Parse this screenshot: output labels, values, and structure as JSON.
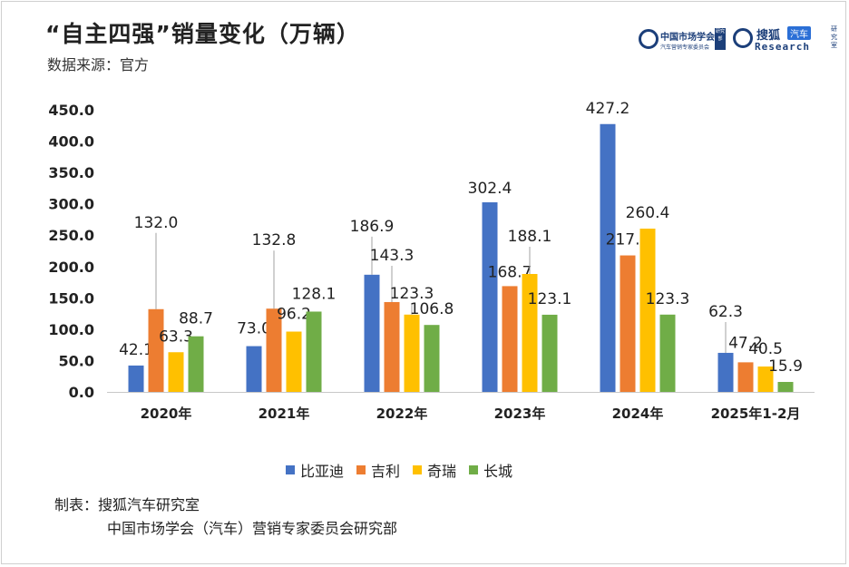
{
  "title": "“自主四强”销量变化（万辆）",
  "subtitle": "数据来源：官方",
  "logos": {
    "left": {
      "name": "中国市场学会",
      "sub": "汽车营销专家委员会",
      "tag": "研究部"
    },
    "right": {
      "name": "搜狐",
      "tag": "汽车",
      "sub": "Research",
      "side": "研究室"
    }
  },
  "footer": {
    "line1": "制表：搜狐汽车研究室",
    "line2": "中国市场学会（汽车）营销专家委员会研究部"
  },
  "chart_data": {
    "type": "bar",
    "categories": [
      "2020年",
      "2021年",
      "2022年",
      "2023年",
      "2024年",
      "2025年1-2月"
    ],
    "series": [
      {
        "name": "比亚迪",
        "color": "#4472c4",
        "values": [
          42.1,
          73.0,
          186.9,
          302.4,
          427.2,
          62.3
        ]
      },
      {
        "name": "吉利",
        "color": "#ed7d31",
        "values": [
          132.0,
          132.8,
          143.3,
          168.7,
          217.7,
          47.2
        ]
      },
      {
        "name": "奇瑞",
        "color": "#ffc000",
        "values": [
          63.3,
          96.2,
          123.3,
          188.1,
          260.4,
          40.5
        ]
      },
      {
        "name": "长城",
        "color": "#70ad47",
        "values": [
          88.7,
          128.1,
          106.8,
          123.1,
          123.3,
          15.9
        ]
      }
    ],
    "yticks": [
      "0.0",
      "50.0",
      "100.0",
      "150.0",
      "200.0",
      "250.0",
      "300.0",
      "350.0",
      "400.0",
      "450.0"
    ],
    "ylim": [
      0,
      450
    ],
    "grid": false,
    "legend": "bottom"
  }
}
